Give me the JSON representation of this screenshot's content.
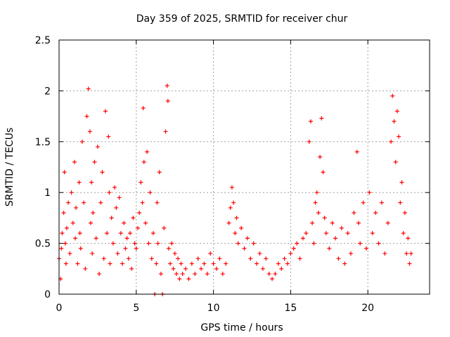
{
  "chart_data": {
    "type": "scatter",
    "title": "Day 359 of 2025, SRMTID for receiver chur",
    "xlabel": "GPS time / hours",
    "ylabel": "SRMTID / TECUs",
    "xlim": [
      0,
      24
    ],
    "ylim": [
      0,
      2.5
    ],
    "x_ticks": [
      0,
      5,
      10,
      15,
      20
    ],
    "x_tick_labels": [
      "0",
      "5",
      "10",
      "15",
      "20"
    ],
    "y_ticks": [
      0,
      0.5,
      1,
      1.5,
      2,
      2.5
    ],
    "y_tick_labels": [
      "0",
      "0.5",
      "1",
      "1.5",
      "2",
      "2.5"
    ],
    "grid": true,
    "marker": "plus",
    "color": "#ff0000",
    "series": [
      {
        "name": "SRMTID",
        "x": [
          0.0,
          0.1,
          0.15,
          0.2,
          0.3,
          0.35,
          0.4,
          0.45,
          0.5,
          0.6,
          0.7,
          0.8,
          0.9,
          1.0,
          1.05,
          1.1,
          1.2,
          1.3,
          1.35,
          1.4,
          1.5,
          1.6,
          1.7,
          1.8,
          1.9,
          2.0,
          2.05,
          2.1,
          2.15,
          2.2,
          2.3,
          2.4,
          2.5,
          2.6,
          2.7,
          2.8,
          2.9,
          3.0,
          3.1,
          3.2,
          3.25,
          3.3,
          3.4,
          3.5,
          3.6,
          3.7,
          3.8,
          3.9,
          4.0,
          4.1,
          4.2,
          4.3,
          4.4,
          4.5,
          4.6,
          4.7,
          4.8,
          4.9,
          5.0,
          5.1,
          5.2,
          5.3,
          5.4,
          5.45,
          5.5,
          5.6,
          5.7,
          5.8,
          5.9,
          6.0,
          6.1,
          6.2,
          6.3,
          6.35,
          6.4,
          6.5,
          6.6,
          6.7,
          6.8,
          6.9,
          7.0,
          7.05,
          7.1,
          7.2,
          7.3,
          7.4,
          7.5,
          7.6,
          7.7,
          7.8,
          7.9,
          8.0,
          8.2,
          8.4,
          8.6,
          8.8,
          9.0,
          9.2,
          9.4,
          9.6,
          9.8,
          10.0,
          10.2,
          10.4,
          10.6,
          10.8,
          11.0,
          11.1,
          11.2,
          11.3,
          11.4,
          11.5,
          11.6,
          11.8,
          12.0,
          12.2,
          12.4,
          12.6,
          12.8,
          13.0,
          13.2,
          13.4,
          13.6,
          13.8,
          14.0,
          14.2,
          14.4,
          14.6,
          14.8,
          15.0,
          15.2,
          15.4,
          15.6,
          15.8,
          16.0,
          16.2,
          16.3,
          16.4,
          16.5,
          16.6,
          16.7,
          16.8,
          16.9,
          17.0,
          17.1,
          17.2,
          17.3,
          17.5,
          17.7,
          17.9,
          18.1,
          18.3,
          18.5,
          18.7,
          18.9,
          19.1,
          19.3,
          19.4,
          19.5,
          19.7,
          19.9,
          20.1,
          20.3,
          20.5,
          20.7,
          20.9,
          21.1,
          21.3,
          21.5,
          21.6,
          21.7,
          21.8,
          21.9,
          22.0,
          22.1,
          22.2,
          22.3,
          22.4,
          22.5,
          22.6,
          22.7,
          22.8
        ],
        "y": [
          0.35,
          0.15,
          0.45,
          0.6,
          0.8,
          1.2,
          0.5,
          0.3,
          0.65,
          0.9,
          0.4,
          1.0,
          0.7,
          1.3,
          0.55,
          0.85,
          0.3,
          1.1,
          0.6,
          0.45,
          1.5,
          0.9,
          0.25,
          1.75,
          2.02,
          1.6,
          0.7,
          1.1,
          0.4,
          0.8,
          1.3,
          0.55,
          1.45,
          0.2,
          0.9,
          1.2,
          0.35,
          1.8,
          0.6,
          1.55,
          1.0,
          0.3,
          0.75,
          0.5,
          1.05,
          0.85,
          0.4,
          0.95,
          0.6,
          0.3,
          0.7,
          0.45,
          0.55,
          0.35,
          0.6,
          0.25,
          0.75,
          0.5,
          0.45,
          0.65,
          0.8,
          1.1,
          0.9,
          1.83,
          1.3,
          0.7,
          1.4,
          0.5,
          1.0,
          0.35,
          0.6,
          0.0,
          0.3,
          0.9,
          0.5,
          1.2,
          0.2,
          0.0,
          0.65,
          1.6,
          2.05,
          1.9,
          0.45,
          0.3,
          0.5,
          0.25,
          0.4,
          0.2,
          0.35,
          0.15,
          0.3,
          0.2,
          0.25,
          0.15,
          0.3,
          0.2,
          0.35,
          0.25,
          0.3,
          0.2,
          0.4,
          0.3,
          0.25,
          0.35,
          0.2,
          0.3,
          0.7,
          0.85,
          1.05,
          0.9,
          0.6,
          0.75,
          0.5,
          0.65,
          0.45,
          0.55,
          0.35,
          0.5,
          0.3,
          0.4,
          0.25,
          0.35,
          0.2,
          0.15,
          0.2,
          0.3,
          0.25,
          0.35,
          0.3,
          0.4,
          0.45,
          0.5,
          0.35,
          0.55,
          0.6,
          1.5,
          1.7,
          0.7,
          0.5,
          0.9,
          1.0,
          0.8,
          1.35,
          1.73,
          1.2,
          0.75,
          0.6,
          0.45,
          0.7,
          0.55,
          0.35,
          0.65,
          0.3,
          0.6,
          0.4,
          0.8,
          1.4,
          0.7,
          0.5,
          0.9,
          0.45,
          1.0,
          0.6,
          0.8,
          0.5,
          0.9,
          0.4,
          0.7,
          1.5,
          1.95,
          1.7,
          1.3,
          1.8,
          1.55,
          0.9,
          1.1,
          0.6,
          0.8,
          0.4,
          0.55,
          0.3,
          0.4
        ]
      }
    ]
  }
}
